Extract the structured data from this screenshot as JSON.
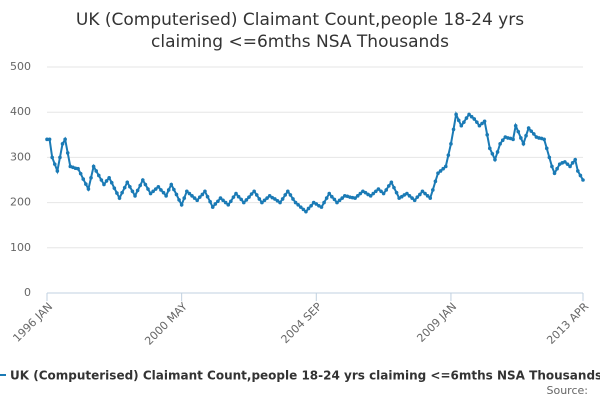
{
  "chart_data": {
    "type": "line",
    "title": [
      "UK (Computerised) Claimant Count,people 18-24 yrs",
      "claiming <=6mths NSA Thousands"
    ],
    "source": "Source:",
    "categories": [
      "1996 JAN",
      null,
      null,
      null,
      null,
      null,
      null,
      null,
      null,
      null,
      null,
      null,
      null,
      null,
      null,
      null,
      null,
      null,
      null,
      null,
      null,
      null,
      null,
      null,
      null,
      null,
      null,
      null,
      null,
      null,
      null,
      null,
      null,
      null,
      null,
      null,
      null,
      null,
      null,
      null,
      null,
      null,
      null,
      null,
      null,
      null,
      null,
      null,
      null,
      null,
      null,
      null,
      "2000 MAY",
      null,
      null,
      null,
      null,
      null,
      null,
      null,
      null,
      null,
      null,
      null,
      null,
      null,
      null,
      null,
      null,
      null,
      null,
      null,
      null,
      null,
      null,
      null,
      null,
      null,
      null,
      null,
      null,
      null,
      null,
      null,
      null,
      null,
      null,
      null,
      null,
      null,
      null,
      null,
      null,
      null,
      null,
      null,
      null,
      null,
      null,
      null,
      null,
      null,
      null,
      null,
      "2004 SEP",
      null,
      null,
      null,
      null,
      null,
      null,
      null,
      null,
      null,
      null,
      null,
      null,
      null,
      null,
      null,
      null,
      null,
      null,
      null,
      null,
      null,
      null,
      null,
      null,
      null,
      null,
      null,
      null,
      null,
      null,
      null,
      null,
      null,
      null,
      null,
      null,
      null,
      null,
      null,
      null,
      null,
      null,
      null,
      null,
      null,
      null,
      null,
      null,
      null,
      null,
      null,
      "2009 JAN",
      null,
      null,
      null,
      null,
      null,
      null,
      null,
      null,
      null,
      null,
      null,
      null,
      null,
      null,
      null,
      null,
      null,
      null,
      null,
      null,
      null,
      null,
      null,
      null,
      null,
      null,
      null,
      null,
      null,
      null,
      null,
      null,
      null,
      null,
      null,
      null,
      null,
      null,
      null,
      null,
      null,
      null,
      null,
      null,
      null,
      null,
      null,
      null,
      null,
      null,
      "2013 APR"
    ],
    "series": [
      {
        "name": "UK (Computerised) Claimant Count,people 18-24 yrs claiming <=6mths NSA Thousands",
        "color": "#1a7ab5",
        "values": [
          340,
          340,
          300,
          285,
          270,
          300,
          330,
          340,
          310,
          280,
          278,
          276,
          275,
          264,
          252,
          241,
          230,
          255,
          280,
          270,
          260,
          250,
          240,
          248,
          255,
          244,
          232,
          221,
          210,
          222,
          233,
          245,
          235,
          225,
          215,
          227,
          238,
          250,
          240,
          230,
          220,
          225,
          230,
          235,
          228,
          222,
          215,
          228,
          240,
          229,
          218,
          206,
          195,
          210,
          225,
          220,
          215,
          210,
          205,
          212,
          218,
          225,
          213,
          202,
          190,
          197,
          203,
          210,
          205,
          200,
          195,
          203,
          212,
          220,
          213,
          207,
          200,
          206,
          212,
          219,
          225,
          217,
          208,
          200,
          205,
          210,
          215,
          211,
          208,
          204,
          200,
          208,
          217,
          225,
          217,
          208,
          200,
          195,
          190,
          185,
          180,
          187,
          193,
          200,
          197,
          193,
          190,
          200,
          210,
          220,
          213,
          207,
          200,
          205,
          210,
          215,
          214,
          212,
          211,
          210,
          215,
          220,
          225,
          222,
          218,
          215,
          220,
          225,
          230,
          225,
          220,
          228,
          237,
          245,
          233,
          222,
          210,
          213,
          217,
          220,
          215,
          210,
          205,
          212,
          218,
          225,
          220,
          215,
          210,
          228,
          247,
          265,
          270,
          275,
          280,
          305,
          330,
          362,
          395,
          382,
          370,
          378,
          387,
          395,
          390,
          385,
          378,
          370,
          375,
          380,
          350,
          320,
          308,
          295,
          312,
          330,
          338,
          345,
          343,
          342,
          340,
          370,
          357,
          343,
          330,
          348,
          365,
          358,
          352,
          345,
          343,
          342,
          340,
          320,
          300,
          280,
          265,
          275,
          285,
          288,
          290,
          285,
          280,
          288,
          295,
          270,
          260,
          250
        ]
      }
    ],
    "ylim": [
      0,
      500
    ],
    "yticks": [
      0,
      100,
      200,
      300,
      400,
      500
    ],
    "grid": true
  }
}
